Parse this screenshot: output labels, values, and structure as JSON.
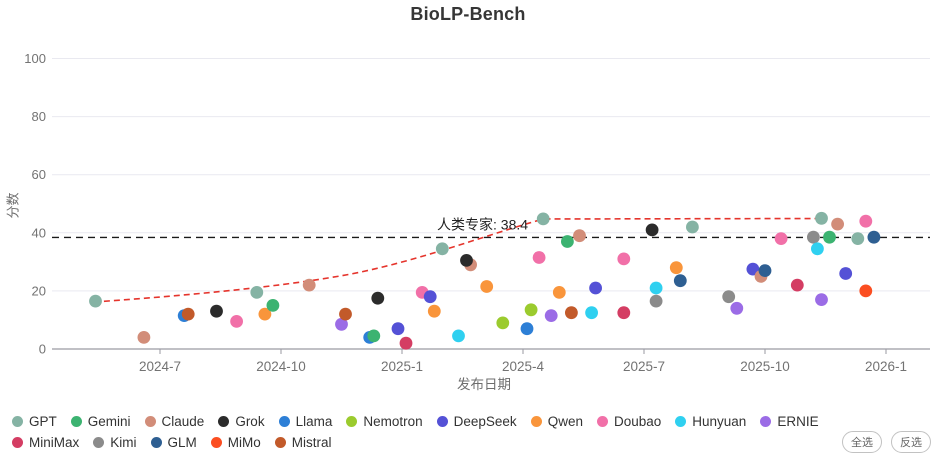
{
  "title": "BioLP-Bench",
  "axes": {
    "y_label": "分数",
    "x_label": "发布日期",
    "y_ticks": [
      0,
      20,
      40,
      60,
      80,
      100
    ],
    "x_ticks": [
      "2024-7",
      "2024-10",
      "2025-1",
      "2025-4",
      "2025-7",
      "2025-10",
      "2026-1"
    ]
  },
  "annotation": {
    "label": "人类专家: 38.4",
    "value": 38.4
  },
  "buttons": {
    "select_all": "全选",
    "invert": "反选"
  },
  "families": [
    {
      "name": "GPT",
      "color": "#85b3a4"
    },
    {
      "name": "Gemini",
      "color": "#3cb371"
    },
    {
      "name": "Claude",
      "color": "#d28d79"
    },
    {
      "name": "Grok",
      "color": "#2b2b2b"
    },
    {
      "name": "Llama",
      "color": "#2d7fd6"
    },
    {
      "name": "Nemotron",
      "color": "#9bc washed"
    },
    {
      "name": "DeepSeek",
      "color": "#5451d6"
    },
    {
      "name": "Qwen",
      "color": "#f9953b"
    },
    {
      "name": "Doubao",
      "color": "#f170a8"
    },
    {
      "name": "Hunyuan",
      "color": "#2fd0f0"
    },
    {
      "name": "ERNIE",
      "color": "#9b6ce6"
    },
    {
      "name": "MiniMax",
      "color": "#d43d63"
    },
    {
      "name": "Kimi",
      "color": "#8b8b8b"
    },
    {
      "name": "GLM",
      "color": "#2e5f92"
    },
    {
      "name": "MiMo",
      "color": "#fb4e21"
    },
    {
      "name": "Mistral",
      "color": "#c25a2a"
    }
  ],
  "chart_data": {
    "type": "scatter",
    "title": "BioLP-Bench",
    "xlabel": "发布日期",
    "ylabel": "分数",
    "ylim": [
      0,
      100
    ],
    "x_ticks": [
      "2024-7",
      "2024-10",
      "2025-1",
      "2025-4",
      "2025-7",
      "2025-10",
      "2026-1"
    ],
    "y_ticks": [
      0,
      20,
      40,
      60,
      80,
      100
    ],
    "grid": true,
    "legend_position": "bottom",
    "human_baseline": {
      "label": "人类专家: 38.4",
      "value": 38.4,
      "style": "black-dashed"
    },
    "trendline": {
      "style": "red-dashed",
      "anchors_month_score": [
        [
          -1.6,
          16.5
        ],
        [
          4.5,
          25
        ],
        [
          9.5,
          44.8
        ],
        [
          16.4,
          45
        ]
      ]
    },
    "x_unit": "m = months since 2024-07",
    "points": [
      {
        "f": "GPT",
        "date": "2024-05",
        "m": -1.6,
        "score": 16.5
      },
      {
        "f": "Claude",
        "date": "2024-06",
        "m": -0.4,
        "score": 4
      },
      {
        "f": "Llama",
        "date": "2024-07",
        "m": 0.6,
        "score": 11.5
      },
      {
        "f": "Mistral",
        "date": "2024-07",
        "m": 0.7,
        "score": 12
      },
      {
        "f": "Grok",
        "date": "2024-08",
        "m": 1.4,
        "score": 13
      },
      {
        "f": "Doubao",
        "date": "2024-09",
        "m": 1.9,
        "score": 9.5
      },
      {
        "f": "GPT",
        "date": "2024-09",
        "m": 2.4,
        "score": 19.5
      },
      {
        "f": "Qwen",
        "date": "2024-09",
        "m": 2.6,
        "score": 12
      },
      {
        "f": "Gemini",
        "date": "2024-10",
        "m": 2.8,
        "score": 15
      },
      {
        "f": "Claude",
        "date": "2024-10",
        "m": 3.7,
        "score": 22
      },
      {
        "f": "ERNIE",
        "date": "2024-11",
        "m": 4.5,
        "score": 8.5
      },
      {
        "f": "Mistral",
        "date": "2024-11",
        "m": 4.6,
        "score": 12
      },
      {
        "f": "Llama",
        "date": "2024-12",
        "m": 5.2,
        "score": 4
      },
      {
        "f": "Gemini",
        "date": "2024-12",
        "m": 5.3,
        "score": 4.5
      },
      {
        "f": "Grok",
        "date": "2024-12",
        "m": 5.4,
        "score": 17.5
      },
      {
        "f": "DeepSeek",
        "date": "2025-01",
        "m": 5.9,
        "score": 7
      },
      {
        "f": "MiniMax",
        "date": "2025-01",
        "m": 6.1,
        "score": 2
      },
      {
        "f": "Doubao",
        "date": "2025-01",
        "m": 6.5,
        "score": 19.5
      },
      {
        "f": "DeepSeek",
        "date": "2025-02",
        "m": 6.7,
        "score": 18
      },
      {
        "f": "Qwen",
        "date": "2025-02",
        "m": 6.8,
        "score": 13
      },
      {
        "f": "GPT",
        "date": "2025-02",
        "m": 7.0,
        "score": 34.5
      },
      {
        "f": "Hunyuan",
        "date": "2025-02",
        "m": 7.4,
        "score": 4.5
      },
      {
        "f": "Claude",
        "date": "2025-02",
        "m": 7.7,
        "score": 29
      },
      {
        "f": "Grok",
        "date": "2025-02",
        "m": 7.6,
        "score": 30.5
      },
      {
        "f": "Qwen",
        "date": "2025-03",
        "m": 8.1,
        "score": 21.5
      },
      {
        "f": "Nemotron",
        "date": "2025-03",
        "m": 8.5,
        "score": 9
      },
      {
        "f": "Llama",
        "date": "2025-04",
        "m": 9.1,
        "score": 7
      },
      {
        "f": "Nemotron",
        "date": "2025-04",
        "m": 9.2,
        "score": 13.5
      },
      {
        "f": "Doubao",
        "date": "2025-04",
        "m": 9.4,
        "score": 31.5
      },
      {
        "f": "GPT",
        "date": "2025-04",
        "m": 9.5,
        "score": 44.8
      },
      {
        "f": "ERNIE",
        "date": "2025-04",
        "m": 9.7,
        "score": 11.5
      },
      {
        "f": "Qwen",
        "date": "2025-05",
        "m": 9.9,
        "score": 19.5
      },
      {
        "f": "Gemini",
        "date": "2025-05",
        "m": 10.1,
        "score": 37
      },
      {
        "f": "Mistral",
        "date": "2025-05",
        "m": 10.2,
        "score": 12.5
      },
      {
        "f": "Claude",
        "date": "2025-05",
        "m": 10.4,
        "score": 39
      },
      {
        "f": "Hunyuan",
        "date": "2025-05",
        "m": 10.7,
        "score": 12.5
      },
      {
        "f": "DeepSeek",
        "date": "2025-06",
        "m": 10.8,
        "score": 21
      },
      {
        "f": "Doubao",
        "date": "2025-06",
        "m": 11.5,
        "score": 31
      },
      {
        "f": "MiniMax",
        "date": "2025-06",
        "m": 11.5,
        "score": 12.5
      },
      {
        "f": "Grok",
        "date": "2025-07",
        "m": 12.2,
        "score": 41
      },
      {
        "f": "Kimi",
        "date": "2025-07",
        "m": 12.3,
        "score": 16.5
      },
      {
        "f": "Hunyuan",
        "date": "2025-07",
        "m": 12.3,
        "score": 21
      },
      {
        "f": "Qwen",
        "date": "2025-07",
        "m": 12.8,
        "score": 28
      },
      {
        "f": "GLM",
        "date": "2025-08",
        "m": 12.9,
        "score": 23.5
      },
      {
        "f": "GPT",
        "date": "2025-08",
        "m": 13.2,
        "score": 42
      },
      {
        "f": "Kimi",
        "date": "2025-09",
        "m": 14.1,
        "score": 18
      },
      {
        "f": "ERNIE",
        "date": "2025-09",
        "m": 14.3,
        "score": 14
      },
      {
        "f": "DeepSeek",
        "date": "2025-09",
        "m": 14.7,
        "score": 27.5
      },
      {
        "f": "Claude",
        "date": "2025-10",
        "m": 14.9,
        "score": 25
      },
      {
        "f": "GLM",
        "date": "2025-10",
        "m": 15.0,
        "score": 27
      },
      {
        "f": "Doubao",
        "date": "2025-10",
        "m": 15.4,
        "score": 38
      },
      {
        "f": "MiniMax",
        "date": "2025-10",
        "m": 15.8,
        "score": 22
      },
      {
        "f": "Kimi",
        "date": "2025-11",
        "m": 16.2,
        "score": 38.5
      },
      {
        "f": "Hunyuan",
        "date": "2025-11",
        "m": 16.3,
        "score": 34.5
      },
      {
        "f": "GPT",
        "date": "2025-11",
        "m": 16.4,
        "score": 45
      },
      {
        "f": "ERNIE",
        "date": "2025-11",
        "m": 16.4,
        "score": 17
      },
      {
        "f": "Gemini",
        "date": "2025-11",
        "m": 16.6,
        "score": 38.5
      },
      {
        "f": "Claude",
        "date": "2025-11",
        "m": 16.8,
        "score": 43
      },
      {
        "f": "DeepSeek",
        "date": "2025-12",
        "m": 17.0,
        "score": 26
      },
      {
        "f": "GPT",
        "date": "2025-12",
        "m": 17.3,
        "score": 38
      },
      {
        "f": "Doubao",
        "date": "2025-12",
        "m": 17.5,
        "score": 44
      },
      {
        "f": "MiMo",
        "date": "2025-12",
        "m": 17.5,
        "score": 20
      },
      {
        "f": "GLM",
        "date": "2025-12",
        "m": 17.7,
        "score": 38.5
      }
    ]
  }
}
